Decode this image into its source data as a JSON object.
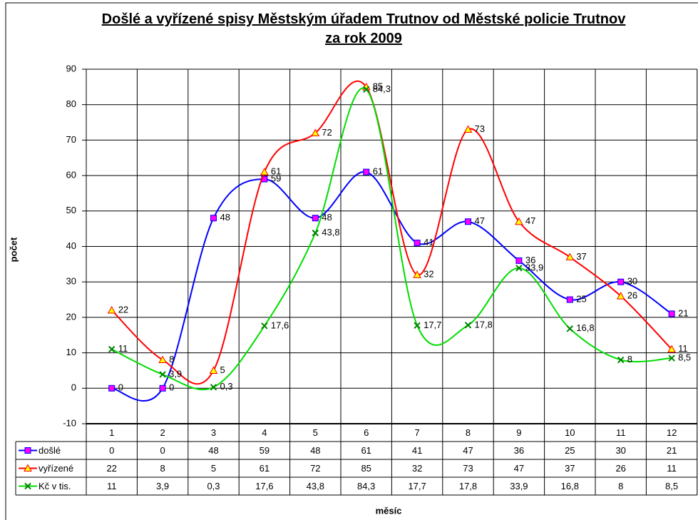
{
  "chart_data": {
    "type": "line",
    "title": "Došlé a vyřízené spisy Městským úřadem Trutnov od Městské policie Trutnov za rok 2009",
    "xlabel": "měsíc",
    "ylabel": "počet",
    "categories": [
      "1",
      "2",
      "3",
      "4",
      "5",
      "6",
      "7",
      "8",
      "9",
      "10",
      "11",
      "12"
    ],
    "ylim": [
      -10,
      90
    ],
    "yticks": [
      -10,
      0,
      10,
      20,
      30,
      40,
      50,
      60,
      70,
      80,
      90
    ],
    "grid": true,
    "smooth": true,
    "series": [
      {
        "name": "došlé",
        "color": "#0000ff",
        "marker": "square",
        "marker_color": "#ff00ff",
        "values": [
          0,
          0,
          48,
          59,
          48,
          61,
          41,
          47,
          36,
          25,
          30,
          21
        ]
      },
      {
        "name": "vyřízené",
        "color": "#ff0000",
        "marker": "triangle",
        "marker_color": "#ffff00",
        "values": [
          22,
          8,
          5,
          61,
          72,
          85,
          32,
          73,
          47,
          37,
          26,
          11
        ]
      },
      {
        "name": "Kč v tis.",
        "color": "#00dd00",
        "marker": "x",
        "marker_color": "#008000",
        "values": [
          11,
          3.9,
          0.3,
          17.6,
          43.8,
          84.3,
          17.7,
          17.8,
          33.9,
          16.8,
          8,
          8.5
        ],
        "value_labels": [
          "11",
          "3,9",
          "0,3",
          "17,6",
          "43,8",
          "84,3",
          "17,7",
          "17,8",
          "33,9",
          "16,8",
          "8",
          "8,5"
        ]
      }
    ]
  }
}
